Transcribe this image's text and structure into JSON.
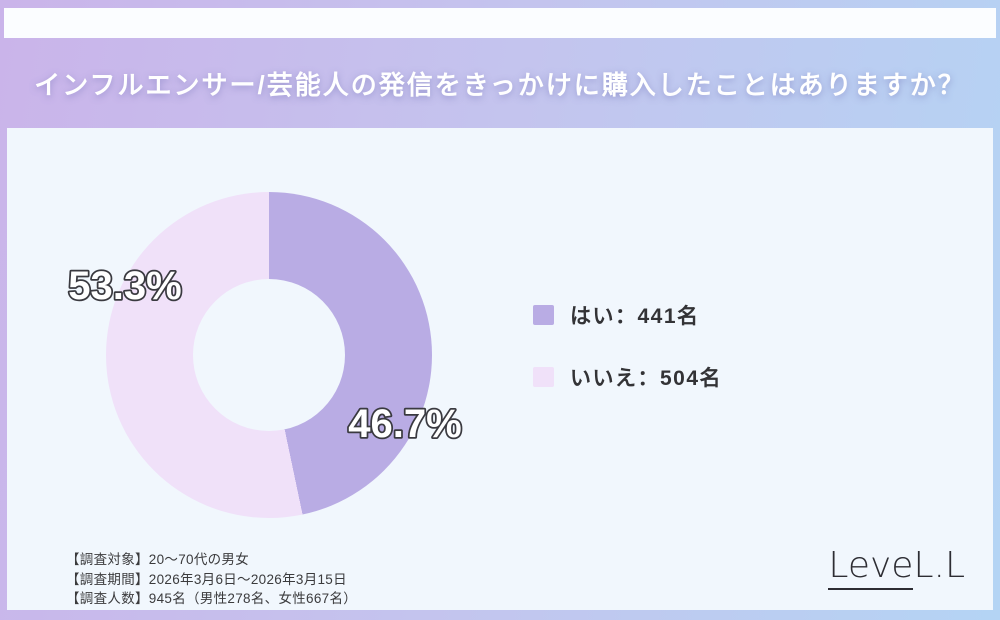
{
  "header": {
    "title": "インフルエンサー/芸能人の発信をきっかけに購入したことはありますか？"
  },
  "chart_data": {
    "type": "pie",
    "subtype": "donut",
    "title": "インフルエンサー/芸能人の発信をきっかけに購入したことはありますか？",
    "labels": [
      "はい",
      "いいえ"
    ],
    "values": [
      441,
      504
    ],
    "percentages": [
      46.7,
      53.3
    ],
    "percent_labels": [
      "46.7%",
      "53.3%"
    ],
    "colors": [
      "#b9ace4",
      "#f0e1f9"
    ],
    "total": 945,
    "start_angle_deg": 0,
    "direction": "clockwise",
    "hole_ratio": 0.47,
    "legend_position": "right"
  },
  "legend": {
    "items": [
      {
        "label": "はい：441名"
      },
      {
        "label": "いいえ：504名"
      }
    ]
  },
  "footer": {
    "lines": [
      "【調査対象】20〜70代の男女",
      "【調査期間】2026年3月6日〜2026年3月15日",
      "【調査人数】945名（男性278名、女性667名）"
    ]
  },
  "logo": {
    "brand": "LeveL.L",
    "underlined_part": "Leve",
    "rest": "L.L"
  }
}
